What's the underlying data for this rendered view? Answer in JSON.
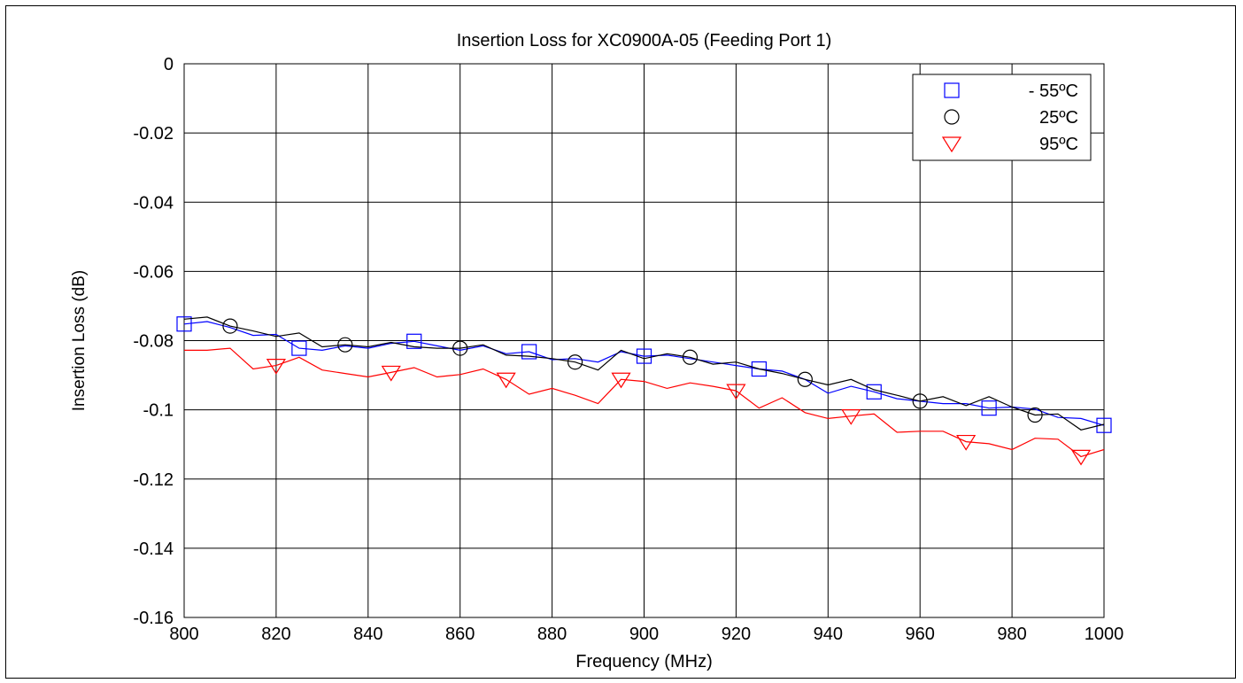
{
  "chart_data": {
    "type": "line",
    "title": "Insertion Loss for XC0900A-05 (Feeding Port 1)",
    "xlabel": "Frequency (MHz)",
    "ylabel": "Insertion Loss (dB)",
    "xlim": [
      800,
      1000
    ],
    "ylim": [
      -0.16,
      0
    ],
    "xticks": [
      800,
      820,
      840,
      860,
      880,
      900,
      920,
      940,
      960,
      980,
      1000
    ],
    "yticks": [
      0,
      -0.02,
      -0.04,
      -0.06,
      -0.08,
      -0.1,
      -0.12,
      -0.14,
      -0.16
    ],
    "xtick_labels": [
      "800",
      "820",
      "840",
      "860",
      "880",
      "900",
      "920",
      "940",
      "960",
      "980",
      "1000"
    ],
    "ytick_labels": [
      "0",
      "-0.02",
      "-0.04",
      "-0.06",
      "-0.08",
      "-0.1",
      "-0.12",
      "-0.14",
      "-0.16"
    ],
    "grid": true,
    "legend_position": "top-right",
    "series": [
      {
        "name": "- 55ºC",
        "color": "#0000ff",
        "marker": "square",
        "x": [
          800,
          805,
          810,
          815,
          820,
          825,
          830,
          835,
          840,
          845,
          850,
          855,
          860,
          865,
          870,
          875,
          880,
          885,
          890,
          895,
          900,
          905,
          910,
          915,
          920,
          925,
          930,
          935,
          940,
          945,
          950,
          955,
          960,
          965,
          970,
          975,
          980,
          985,
          990,
          995,
          1000
        ],
        "y": [
          -0.0752,
          -0.0745,
          -0.0762,
          -0.0785,
          -0.0782,
          -0.0822,
          -0.0828,
          -0.0815,
          -0.0822,
          -0.0808,
          -0.0802,
          -0.0815,
          -0.0828,
          -0.0815,
          -0.0838,
          -0.0832,
          -0.0855,
          -0.0852,
          -0.0862,
          -0.0832,
          -0.0845,
          -0.0842,
          -0.0852,
          -0.0862,
          -0.0872,
          -0.0882,
          -0.0888,
          -0.0912,
          -0.0952,
          -0.0932,
          -0.0948,
          -0.0968,
          -0.0975,
          -0.0982,
          -0.0982,
          -0.0995,
          -0.0992,
          -0.0998,
          -0.1022,
          -0.1025,
          -0.1045
        ],
        "marker_x": [
          800,
          825,
          850,
          875,
          900,
          925,
          950,
          975,
          1000
        ],
        "marker_y": [
          -0.0752,
          -0.0822,
          -0.0802,
          -0.0832,
          -0.0845,
          -0.0882,
          -0.0948,
          -0.0995,
          -0.1045
        ]
      },
      {
        "name": "25ºC",
        "color": "#000000",
        "marker": "circle",
        "x": [
          800,
          805,
          810,
          815,
          820,
          825,
          830,
          835,
          840,
          845,
          850,
          855,
          860,
          865,
          870,
          875,
          880,
          885,
          890,
          895,
          900,
          905,
          910,
          915,
          920,
          925,
          930,
          935,
          940,
          945,
          950,
          955,
          960,
          965,
          970,
          975,
          980,
          985,
          990,
          995,
          1000
        ],
        "y": [
          -0.0738,
          -0.0732,
          -0.0758,
          -0.0772,
          -0.0788,
          -0.0778,
          -0.0818,
          -0.0812,
          -0.0818,
          -0.0805,
          -0.0818,
          -0.0822,
          -0.0822,
          -0.0812,
          -0.0842,
          -0.0845,
          -0.0852,
          -0.0862,
          -0.0885,
          -0.0828,
          -0.0852,
          -0.0838,
          -0.0848,
          -0.0868,
          -0.0862,
          -0.0882,
          -0.0895,
          -0.0912,
          -0.0928,
          -0.0912,
          -0.0942,
          -0.0958,
          -0.0975,
          -0.0962,
          -0.0988,
          -0.0962,
          -0.0992,
          -0.1015,
          -0.1012,
          -0.1058,
          -0.1042
        ],
        "marker_x": [
          810,
          835,
          860,
          885,
          910,
          935,
          960,
          985
        ],
        "marker_y": [
          -0.0758,
          -0.0812,
          -0.0822,
          -0.0862,
          -0.0848,
          -0.0912,
          -0.0975,
          -0.1015
        ]
      },
      {
        "name": "95ºC",
        "color": "#ff0000",
        "marker": "triangle-down",
        "x": [
          800,
          805,
          810,
          815,
          820,
          825,
          830,
          835,
          840,
          845,
          850,
          855,
          860,
          865,
          870,
          875,
          880,
          885,
          890,
          895,
          900,
          905,
          910,
          915,
          920,
          925,
          930,
          935,
          940,
          945,
          950,
          955,
          960,
          965,
          970,
          975,
          980,
          985,
          990,
          995,
          1000
        ],
        "y": [
          -0.0828,
          -0.0828,
          -0.0822,
          -0.0882,
          -0.0872,
          -0.0848,
          -0.0885,
          -0.0895,
          -0.0905,
          -0.0892,
          -0.0878,
          -0.0905,
          -0.0898,
          -0.0882,
          -0.0912,
          -0.0955,
          -0.0938,
          -0.0958,
          -0.0982,
          -0.0912,
          -0.0918,
          -0.0938,
          -0.0922,
          -0.0932,
          -0.0945,
          -0.0995,
          -0.0965,
          -0.1008,
          -0.1025,
          -0.1018,
          -0.1012,
          -0.1065,
          -0.1062,
          -0.1062,
          -0.1092,
          -0.1098,
          -0.1115,
          -0.1082,
          -0.1085,
          -0.1135,
          -0.1115
        ],
        "marker_x": [
          820,
          845,
          870,
          895,
          920,
          945,
          970,
          995
        ],
        "marker_y": [
          -0.0872,
          -0.0892,
          -0.0912,
          -0.0912,
          -0.0945,
          -0.1018,
          -0.1092,
          -0.1135
        ]
      }
    ]
  }
}
